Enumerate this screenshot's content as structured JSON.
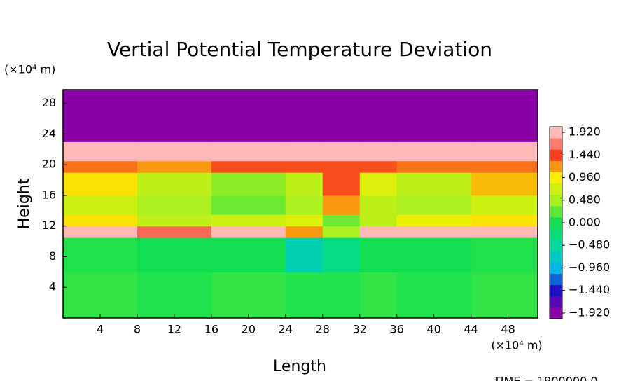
{
  "chart_data": {
    "type": "heatmap",
    "title": "Vertial Potential Temperature Deviation",
    "x_label": "Length",
    "y_label": "Height",
    "x_unit_label": "(×10⁴ m)",
    "y_unit_label": "(×10⁴ m)",
    "footer": "TIME = 1900000.0",
    "xlim": [
      0,
      51.2
    ],
    "ylim": [
      0,
      29.8
    ],
    "xticks": [
      4,
      8,
      12,
      16,
      20,
      24,
      28,
      32,
      36,
      40,
      44,
      48
    ],
    "yticks": [
      4,
      8,
      12,
      16,
      20,
      24,
      28
    ],
    "x_edges": [
      0,
      8,
      16,
      24,
      28,
      32,
      36,
      44,
      51.2
    ],
    "y_edges": [
      0,
      6,
      10.5,
      12,
      13.5,
      16,
      19,
      20.5,
      23,
      29.8
    ],
    "z": [
      [
        0.1,
        0.05,
        0.1,
        0.05,
        0.05,
        0.1,
        0.05,
        0.1
      ],
      [
        0.05,
        0,
        0,
        -0.6,
        -0.3,
        0,
        0,
        0.05
      ],
      [
        1.92,
        1.6,
        1.92,
        1.2,
        0.5,
        1.92,
        1.92,
        1.92
      ],
      [
        1.0,
        0.6,
        0.7,
        0.8,
        0.3,
        0.6,
        0.9,
        1.0
      ],
      [
        0.7,
        0.5,
        0.3,
        0.5,
        1.2,
        0.6,
        0.5,
        0.7
      ],
      [
        1.0,
        0.6,
        0.4,
        0.6,
        1.4,
        0.8,
        0.6,
        1.1
      ],
      [
        1.3,
        1.2,
        1.4,
        1.4,
        1.4,
        1.4,
        1.3,
        1.3
      ],
      [
        1.92,
        1.92,
        1.92,
        1.92,
        1.92,
        1.92,
        1.92,
        1.92
      ],
      [
        -1.92,
        -1.92,
        -1.92,
        -1.92,
        -1.92,
        -1.92,
        -1.92,
        -1.92
      ]
    ],
    "clim": [
      -2.04,
      2.04
    ],
    "cticks": [
      {
        "value": -1.92,
        "label": "−1.920"
      },
      {
        "value": -1.44,
        "label": "−1.440"
      },
      {
        "value": -0.96,
        "label": "−0.960"
      },
      {
        "value": -0.48,
        "label": "−0.480"
      },
      {
        "value": 0,
        "label": "0.000"
      },
      {
        "value": 0.48,
        "label": "0.480"
      },
      {
        "value": 0.96,
        "label": "0.960"
      },
      {
        "value": 1.44,
        "label": "1.440"
      },
      {
        "value": 1.92,
        "label": "1.920"
      }
    ],
    "colormap": [
      "#8c00a8",
      "#2010c8",
      "#00b8e8",
      "#00d8a0",
      "#10e050",
      "#a8f020",
      "#f8f000",
      "#f84020",
      "#ffb8b8"
    ]
  }
}
